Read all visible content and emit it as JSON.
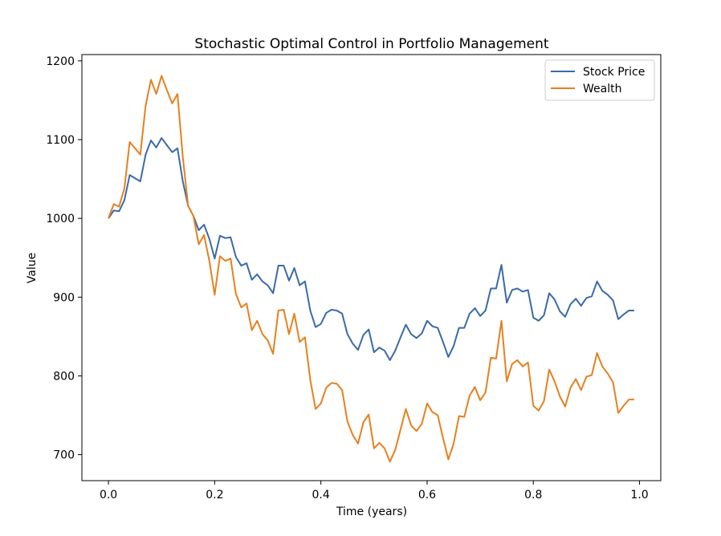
{
  "chart_data": {
    "type": "line",
    "title": "Stochastic Optimal Control in Portfolio Management",
    "xlabel": "Time (years)",
    "ylabel": "Value",
    "xlim": [
      -0.05,
      1.04
    ],
    "ylim": [
      667,
      1208
    ],
    "xticks": [
      0.0,
      0.2,
      0.4,
      0.6,
      0.8,
      1.0
    ],
    "xtick_labels": [
      "0.0",
      "0.2",
      "0.4",
      "0.6",
      "0.8",
      "1.0"
    ],
    "yticks": [
      700,
      800,
      900,
      1000,
      1100,
      1200
    ],
    "ytick_labels": [
      "700",
      "800",
      "900",
      "1000",
      "1100",
      "1200"
    ],
    "grid": false,
    "legend_position": "top-right",
    "x": [
      0.0,
      0.01,
      0.02,
      0.03,
      0.04,
      0.05,
      0.06,
      0.07,
      0.08,
      0.09,
      0.1,
      0.11,
      0.12,
      0.13,
      0.14,
      0.15,
      0.16,
      0.17,
      0.18,
      0.19,
      0.2,
      0.21,
      0.22,
      0.23,
      0.24,
      0.25,
      0.26,
      0.27,
      0.28,
      0.29,
      0.3,
      0.31,
      0.32,
      0.33,
      0.34,
      0.35,
      0.36,
      0.37,
      0.38,
      0.39,
      0.4,
      0.41,
      0.42,
      0.43,
      0.44,
      0.45,
      0.46,
      0.47,
      0.48,
      0.49,
      0.5,
      0.51,
      0.52,
      0.53,
      0.54,
      0.55,
      0.56,
      0.57,
      0.58,
      0.59,
      0.6,
      0.61,
      0.62,
      0.63,
      0.64,
      0.65,
      0.66,
      0.67,
      0.68,
      0.69,
      0.7,
      0.71,
      0.72,
      0.73,
      0.74,
      0.75,
      0.76,
      0.77,
      0.78,
      0.79,
      0.8,
      0.81,
      0.82,
      0.83,
      0.84,
      0.85,
      0.86,
      0.87,
      0.88,
      0.89,
      0.9,
      0.91,
      0.92,
      0.93,
      0.94,
      0.95,
      0.96,
      0.97,
      0.98,
      0.99
    ],
    "series": [
      {
        "name": "Stock Price",
        "color": "#3a6aa8",
        "values": [
          1000,
          1010,
          1009,
          1023,
          1055,
          1051,
          1047,
          1081,
          1099,
          1090,
          1102,
          1093,
          1084,
          1089,
          1047,
          1016,
          1003,
          985,
          992,
          974,
          949,
          978,
          975,
          976,
          951,
          940,
          943,
          922,
          929,
          920,
          915,
          905,
          940,
          940,
          921,
          937,
          915,
          920,
          883,
          862,
          866,
          880,
          884,
          883,
          879,
          853,
          841,
          833,
          852,
          859,
          830,
          836,
          832,
          820,
          832,
          849,
          865,
          853,
          848,
          854,
          870,
          863,
          861,
          843,
          824,
          838,
          861,
          861,
          879,
          886,
          876,
          883,
          911,
          911,
          941,
          893,
          909,
          911,
          907,
          909,
          874,
          870,
          877,
          905,
          897,
          882,
          875,
          891,
          898,
          889,
          899,
          901,
          920,
          908,
          903,
          896,
          872,
          878,
          883,
          883
        ]
      },
      {
        "name": "Wealth",
        "color": "#e6801f",
        "values": [
          1000,
          1018,
          1015,
          1038,
          1097,
          1089,
          1081,
          1143,
          1176,
          1158,
          1181,
          1163,
          1146,
          1158,
          1078,
          1016,
          1003,
          967,
          979,
          946,
          903,
          952,
          946,
          949,
          904,
          887,
          892,
          858,
          870,
          853,
          845,
          828,
          883,
          884,
          853,
          879,
          843,
          849,
          795,
          758,
          765,
          785,
          791,
          790,
          782,
          742,
          725,
          714,
          741,
          751,
          708,
          715,
          708,
          691,
          706,
          732,
          758,
          737,
          730,
          739,
          765,
          754,
          750,
          721,
          694,
          714,
          749,
          748,
          775,
          786,
          769,
          779,
          823,
          822,
          870,
          793,
          815,
          820,
          812,
          817,
          762,
          756,
          768,
          808,
          793,
          774,
          761,
          785,
          796,
          782,
          799,
          801,
          829,
          812,
          803,
          792,
          753,
          762,
          770,
          770
        ]
      }
    ]
  }
}
